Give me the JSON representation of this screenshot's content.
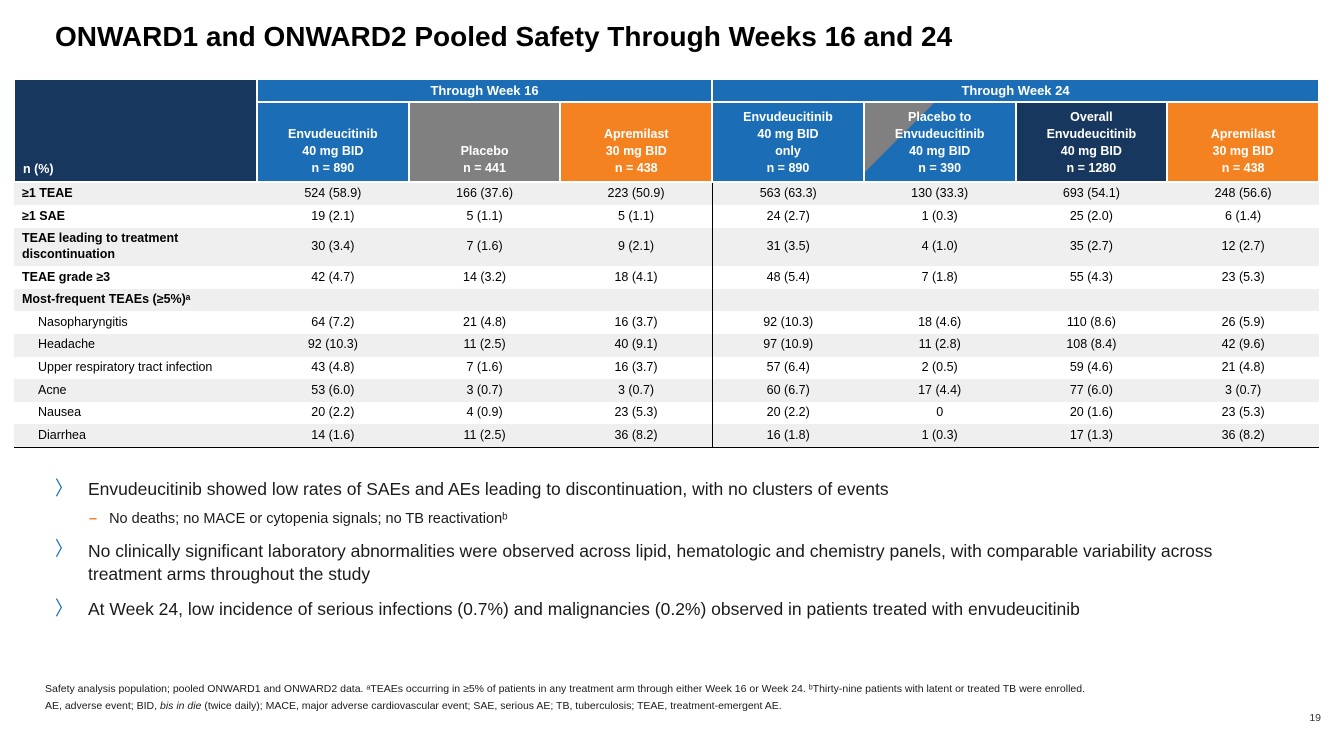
{
  "title": "ONWARD1 and ONWARD2 Pooled Safety Through Weeks 16 and 24",
  "page_number": "19",
  "colors": {
    "blue": "#1B6EB5",
    "navy": "#17375E",
    "gray": "#808080",
    "orange": "#F58220",
    "stripe": "#EFEFEF"
  },
  "table": {
    "corner_header": "n (%)",
    "group_headers": [
      {
        "label": "Through Week 16",
        "span": 3
      },
      {
        "label": "Through Week 24",
        "span": 4
      }
    ],
    "columns": [
      {
        "lines": [
          "Envudeucitinib",
          "40 mg BID"
        ],
        "n": "n = 890",
        "color": "blue"
      },
      {
        "lines": [
          "Placebo"
        ],
        "n": "n = 441",
        "color": "gray"
      },
      {
        "lines": [
          "Apremilast",
          "30 mg BID"
        ],
        "n": "n = 438",
        "color": "orange"
      },
      {
        "lines": [
          "Envudeucitinib",
          "40 mg BID",
          "only"
        ],
        "n": "n = 890",
        "color": "blue"
      },
      {
        "lines": [
          "Placebo to",
          "Envudeucitinib",
          "40 mg BID"
        ],
        "n": "n = 390",
        "color": "diagonal"
      },
      {
        "lines": [
          "Overall",
          "Envudeucitinib",
          "40 mg BID"
        ],
        "n": "n = 1280",
        "color": "navy"
      },
      {
        "lines": [
          "Apremilast",
          "30 mg BID"
        ],
        "n": "n = 438",
        "color": "orange"
      }
    ],
    "rows": [
      {
        "label": "≥1 TEAE",
        "style": "bold",
        "values": [
          "524 (58.9)",
          "166 (37.6)",
          "223 (50.9)",
          "563 (63.3)",
          "130 (33.3)",
          "693 (54.1)",
          "248 (56.6)"
        ]
      },
      {
        "label": "≥1 SAE",
        "style": "bold",
        "values": [
          "19 (2.1)",
          "5 (1.1)",
          "5 (1.1)",
          "24 (2.7)",
          "1 (0.3)",
          "25 (2.0)",
          "6 (1.4)"
        ]
      },
      {
        "label": "TEAE leading to treatment discontinuation",
        "style": "bold",
        "values": [
          "30 (3.4)",
          "7 (1.6)",
          "9 (2.1)",
          "31 (3.5)",
          "4 (1.0)",
          "35 (2.7)",
          "12 (2.7)"
        ]
      },
      {
        "label": "TEAE grade ≥3",
        "style": "bold",
        "values": [
          "42 (4.7)",
          "14 (3.2)",
          "18 (4.1)",
          "48 (5.4)",
          "7 (1.8)",
          "55 (4.3)",
          "23 (5.3)"
        ]
      },
      {
        "label": "Most-frequent TEAEs (≥5%)ᵃ",
        "style": "bold",
        "values": [
          "",
          "",
          "",
          "",
          "",
          "",
          ""
        ]
      },
      {
        "label": "Nasopharyngitis",
        "style": "indent",
        "values": [
          "64 (7.2)",
          "21 (4.8)",
          "16 (3.7)",
          "92 (10.3)",
          "18 (4.6)",
          "110 (8.6)",
          "26 (5.9)"
        ]
      },
      {
        "label": "Headache",
        "style": "indent",
        "values": [
          "92 (10.3)",
          "11 (2.5)",
          "40 (9.1)",
          "97 (10.9)",
          "11 (2.8)",
          "108 (8.4)",
          "42 (9.6)"
        ]
      },
      {
        "label": "Upper respiratory tract infection",
        "style": "indent",
        "values": [
          "43 (4.8)",
          "7 (1.6)",
          "16 (3.7)",
          "57 (6.4)",
          "2 (0.5)",
          "59 (4.6)",
          "21 (4.8)"
        ]
      },
      {
        "label": "Acne",
        "style": "indent",
        "values": [
          "53 (6.0)",
          "3 (0.7)",
          "3 (0.7)",
          "60 (6.7)",
          "17 (4.4)",
          "77 (6.0)",
          "3 (0.7)"
        ]
      },
      {
        "label": "Nausea",
        "style": "indent",
        "values": [
          "20 (2.2)",
          "4 (0.9)",
          "23 (5.3)",
          "20 (2.2)",
          "0",
          "20 (1.6)",
          "23 (5.3)"
        ]
      },
      {
        "label": "Diarrhea",
        "style": "indent",
        "values": [
          "14 (1.6)",
          "11 (2.5)",
          "36 (8.2)",
          "16 (1.8)",
          "1 (0.3)",
          "17 (1.3)",
          "36 (8.2)"
        ]
      }
    ]
  },
  "bullets": [
    {
      "text": "Envudeucitinib showed low rates of SAEs and AEs leading to discontinuation, with no clusters of events",
      "sub": [
        "No deaths; no MACE or cytopenia signals; no TB reactivationᵇ"
      ]
    },
    {
      "text": "No clinically significant laboratory abnormalities were observed across lipid, hematologic and chemistry panels, with comparable variability across treatment arms throughout the study",
      "sub": []
    },
    {
      "text": "At Week 24, low incidence of serious infections (0.7%) and malignancies (0.2%) observed in patients treated with envudeucitinib",
      "sub": []
    }
  ],
  "footnotes": {
    "line1": "Safety analysis population; pooled ONWARD1 and ONWARD2 data. ᵃTEAEs occurring in ≥5% of patients in any treatment arm through either Week 16 or Week 24. ᵇThirty-nine patients with latent or treated TB were enrolled.",
    "line2_parts": [
      "AE, adverse event; BID, ",
      "bis in die",
      " (twice daily); MACE, major adverse cardiovascular event; SAE, serious AE; TB, tuberculosis; TEAE, treatment-emergent AE."
    ]
  }
}
